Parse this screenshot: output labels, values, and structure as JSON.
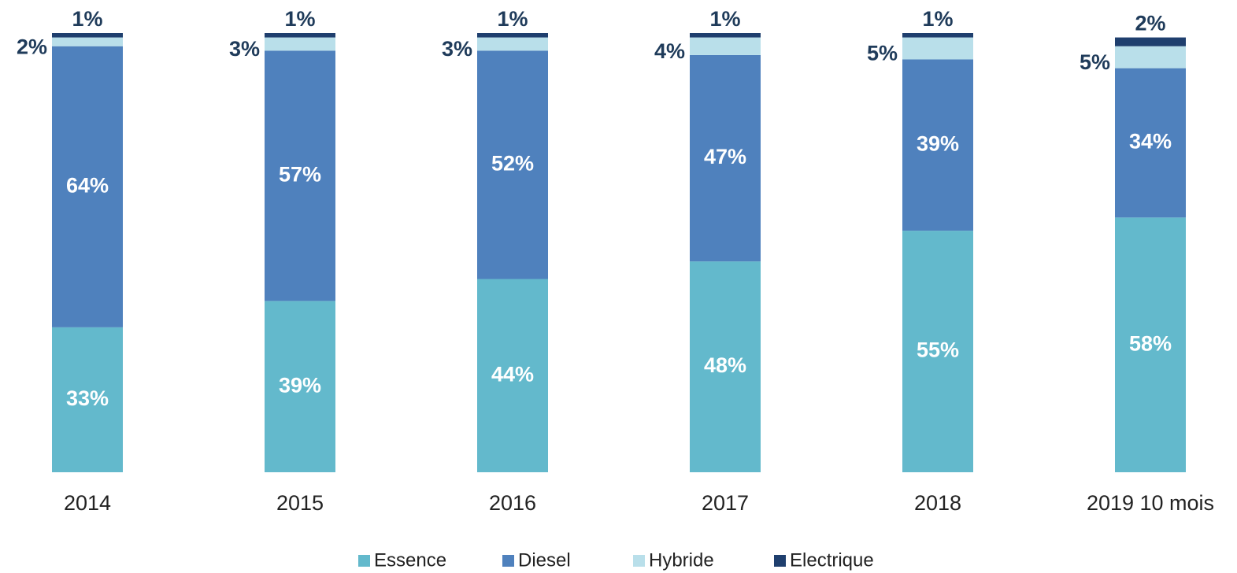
{
  "chart_data": {
    "type": "stacked_bar",
    "categories": [
      "2014",
      "2015",
      "2016",
      "2017",
      "2018",
      "2019 10 mois"
    ],
    "series": [
      {
        "name": "Essence",
        "color": "#63b9cc",
        "values": [
          33,
          39,
          44,
          48,
          55,
          58
        ],
        "value_labels": [
          "33%",
          "39%",
          "44%",
          "48%",
          "55%",
          "58%"
        ]
      },
      {
        "name": "Diesel",
        "color": "#4f81bd",
        "values": [
          64,
          57,
          52,
          47,
          39,
          34
        ],
        "value_labels": [
          "64%",
          "57%",
          "52%",
          "47%",
          "39%",
          "34%"
        ]
      },
      {
        "name": "Hybride",
        "color": "#b9dfea",
        "values": [
          2,
          3,
          3,
          4,
          5,
          5
        ],
        "value_labels": [
          "2%",
          "3%",
          "3%",
          "4%",
          "5%",
          "5%"
        ]
      },
      {
        "name": "Electrique",
        "color": "#1f3f6e",
        "values": [
          1,
          1,
          1,
          1,
          1,
          2
        ],
        "value_labels": [
          "1%",
          "1%",
          "1%",
          "1%",
          "1%",
          "2%"
        ]
      }
    ],
    "ylim": [
      0,
      100
    ]
  }
}
